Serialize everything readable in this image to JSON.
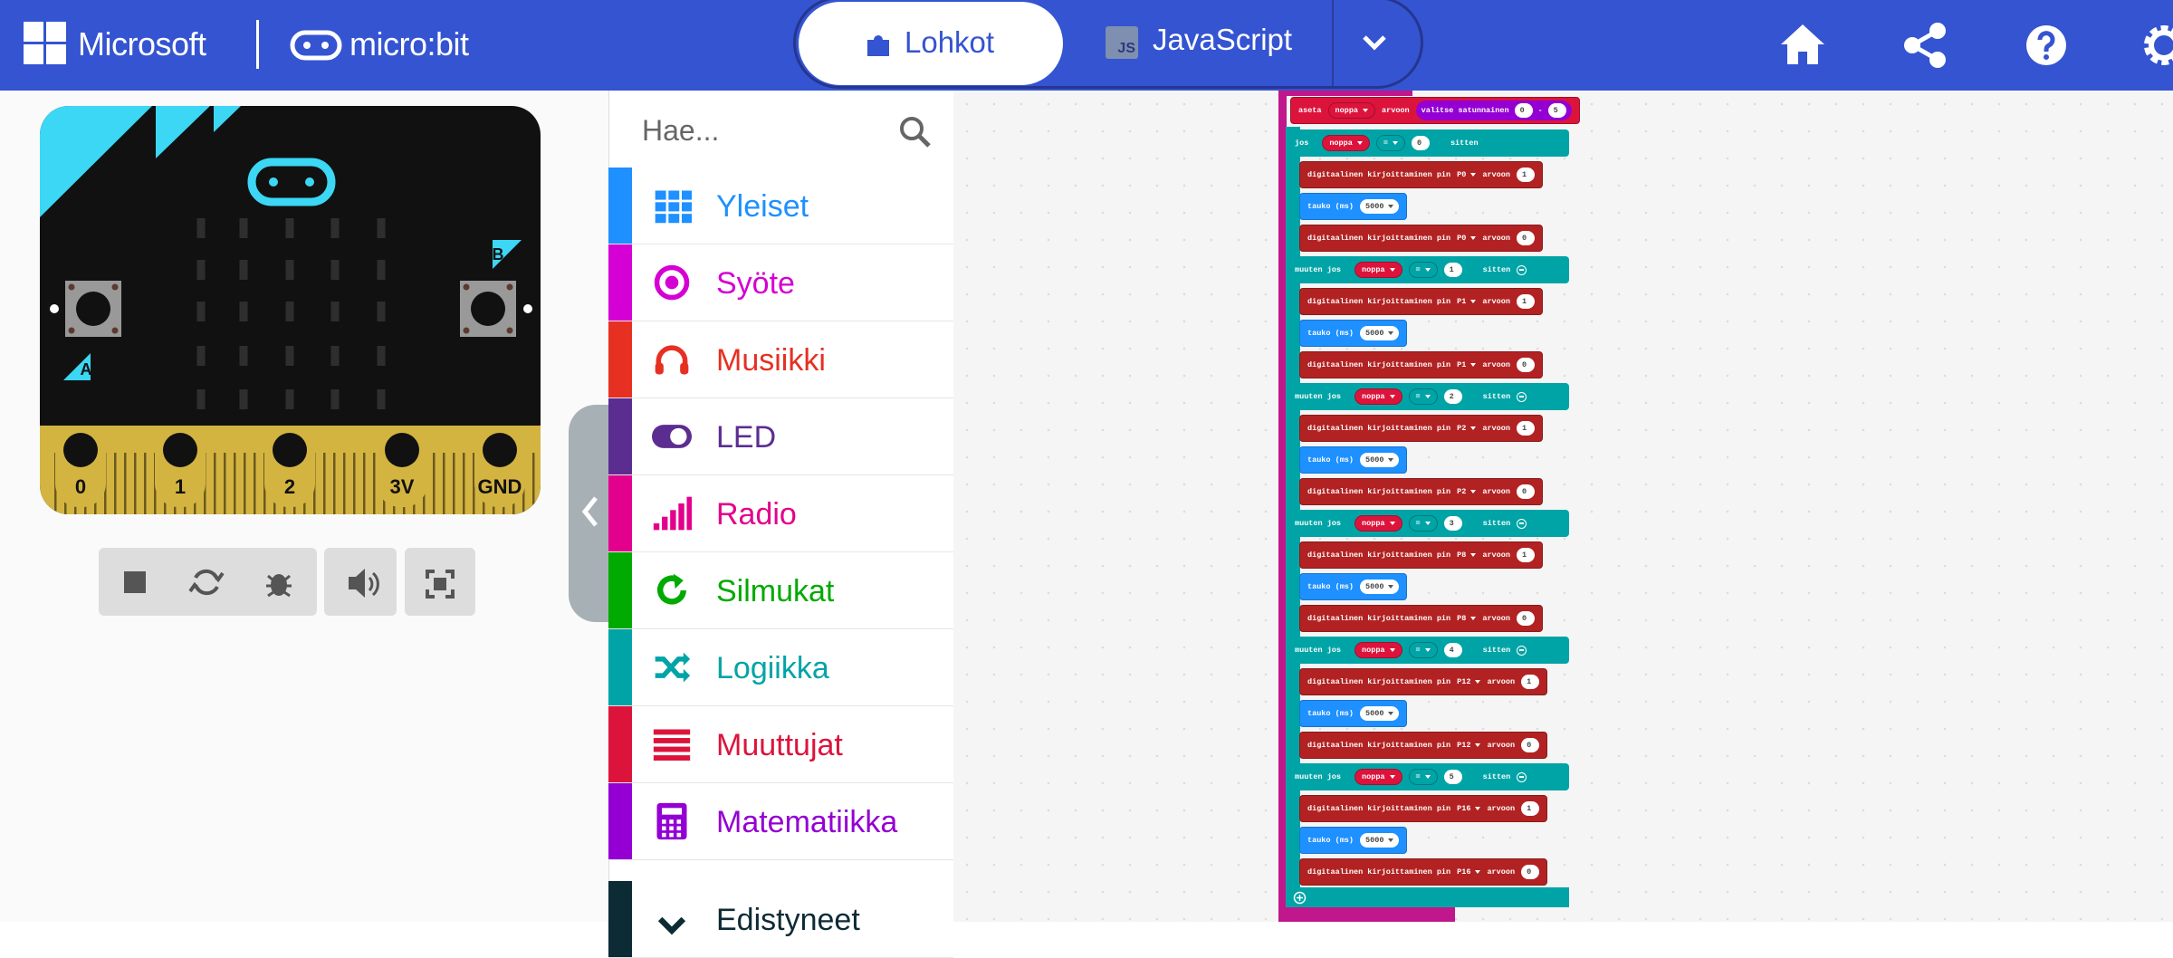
{
  "header": {
    "brand": "Microsoft",
    "product": "micro:bit",
    "tabs": [
      "Lohkot",
      "JavaScript"
    ],
    "js_icon": "JS"
  },
  "simulator": {
    "buttons": [
      "A",
      "B"
    ],
    "pins": [
      "0",
      "1",
      "2",
      "3V",
      "GND"
    ]
  },
  "toolbox": {
    "search_placeholder": "Hae...",
    "categories": [
      {
        "name": "Yleiset",
        "color": "#1e90ff"
      },
      {
        "name": "Syöte",
        "color": "#d400d4"
      },
      {
        "name": "Musiikki",
        "color": "#e63022"
      },
      {
        "name": "LED",
        "color": "#5c2d91"
      },
      {
        "name": "Radio",
        "color": "#e3008c"
      },
      {
        "name": "Silmukat",
        "color": "#00aa00"
      },
      {
        "name": "Logiikka",
        "color": "#00a4a6"
      },
      {
        "name": "Muuttujat",
        "color": "#dc143c"
      },
      {
        "name": "Matematiikka",
        "color": "#9400d3"
      },
      {
        "name": "Edistyneet",
        "color": "#0d2b35"
      }
    ]
  },
  "workspace": {
    "set_block": {
      "keyword": "aseta",
      "variable": "noppa",
      "to": "arvoon",
      "function": "valitse satunnainen",
      "min": 0,
      "separator": "-",
      "max": 5
    },
    "branches": [
      {
        "keyword": "jos",
        "variable": "noppa",
        "operator": "=",
        "value": 0,
        "then": "sitten",
        "body": [
          {
            "label": "digitaalinen kirjoittaminen pin",
            "pin": "P0",
            "to": "arvoon",
            "value": 1
          },
          {
            "label": "tauko (ms)",
            "value": 5000
          },
          {
            "label": "digitaalinen kirjoittaminen pin",
            "pin": "P0",
            "to": "arvoon",
            "value": 0
          }
        ]
      },
      {
        "keyword": "muuten jos",
        "variable": "noppa",
        "operator": "=",
        "value": 1,
        "then": "sitten",
        "body": [
          {
            "label": "digitaalinen kirjoittaminen pin",
            "pin": "P1",
            "to": "arvoon",
            "value": 1
          },
          {
            "label": "tauko (ms)",
            "value": 5000
          },
          {
            "label": "digitaalinen kirjoittaminen pin",
            "pin": "P1",
            "to": "arvoon",
            "value": 0
          }
        ]
      },
      {
        "keyword": "muuten jos",
        "variable": "noppa",
        "operator": "=",
        "value": 2,
        "then": "sitten",
        "body": [
          {
            "label": "digitaalinen kirjoittaminen pin",
            "pin": "P2",
            "to": "arvoon",
            "value": 1
          },
          {
            "label": "tauko (ms)",
            "value": 5000
          },
          {
            "label": "digitaalinen kirjoittaminen pin",
            "pin": "P2",
            "to": "arvoon",
            "value": 0
          }
        ]
      },
      {
        "keyword": "muuten jos",
        "variable": "noppa",
        "operator": "=",
        "value": 3,
        "then": "sitten",
        "body": [
          {
            "label": "digitaalinen kirjoittaminen pin",
            "pin": "P8",
            "to": "arvoon",
            "value": 1
          },
          {
            "label": "tauko (ms)",
            "value": 5000
          },
          {
            "label": "digitaalinen kirjoittaminen pin",
            "pin": "P8",
            "to": "arvoon",
            "value": 0
          }
        ]
      },
      {
        "keyword": "muuten jos",
        "variable": "noppa",
        "operator": "=",
        "value": 4,
        "then": "sitten",
        "body": [
          {
            "label": "digitaalinen kirjoittaminen pin",
            "pin": "P12",
            "to": "arvoon",
            "value": 1
          },
          {
            "label": "tauko (ms)",
            "value": 5000
          },
          {
            "label": "digitaalinen kirjoittaminen pin",
            "pin": "P12",
            "to": "arvoon",
            "value": 0
          }
        ]
      },
      {
        "keyword": "muuten jos",
        "variable": "noppa",
        "operator": "=",
        "value": 5,
        "then": "sitten",
        "body": [
          {
            "label": "digitaalinen kirjoittaminen pin",
            "pin": "P16",
            "to": "arvoon",
            "value": 1
          },
          {
            "label": "tauko (ms)",
            "value": 5000
          },
          {
            "label": "digitaalinen kirjoittaminen pin",
            "pin": "P16",
            "to": "arvoon",
            "value": 0
          }
        ]
      }
    ]
  }
}
